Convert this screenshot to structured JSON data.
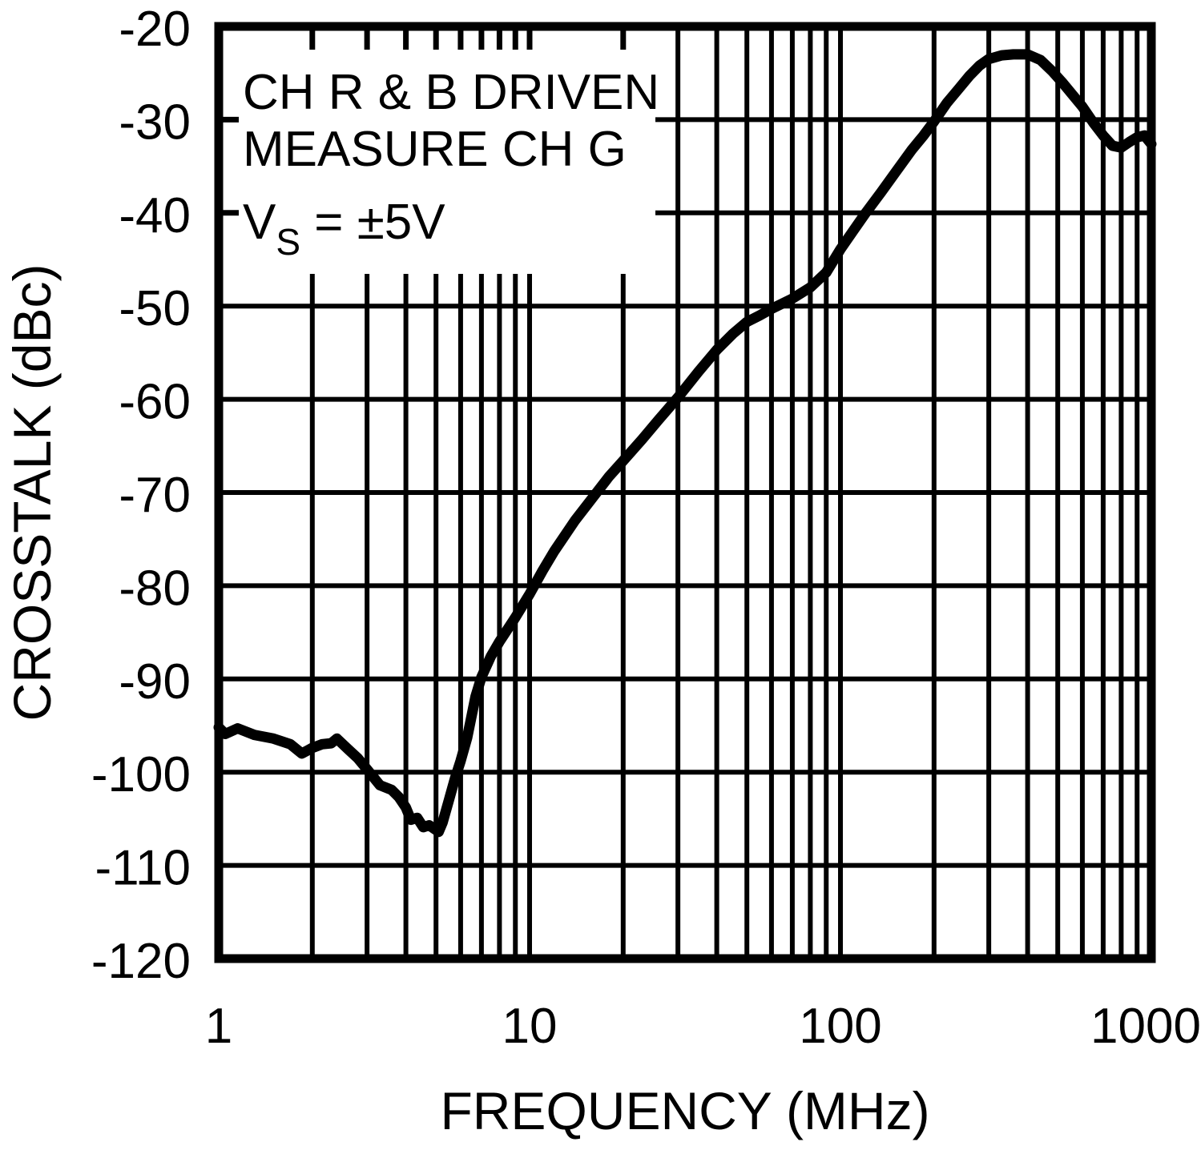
{
  "figure": {
    "xlabel": "FREQUENCY (MHz)",
    "ylabel": "CROSSTALK (dBc)",
    "annotation": {
      "line1": "CH R & B DRIVEN",
      "line2": "MEASURE CH G",
      "line3_pre": "V",
      "line3_sub": "S",
      "line3_post": " = ±5V"
    }
  },
  "chart_data": {
    "type": "line",
    "title": "",
    "xlabel": "FREQUENCY (MHz)",
    "ylabel": "CROSSTALK (dBc)",
    "x_scale": "log",
    "xlim": [
      1,
      1000
    ],
    "ylim": [
      -120,
      -20
    ],
    "x_ticks": [
      1,
      10,
      100,
      1000
    ],
    "x_tick_labels": [
      "1",
      "10",
      "100",
      "1000"
    ],
    "y_ticks": [
      -20,
      -30,
      -40,
      -50,
      -60,
      -70,
      -80,
      -90,
      -100,
      -110,
      -120
    ],
    "y_tick_labels": [
      "-20",
      "-30",
      "-40",
      "-50",
      "-60",
      "-70",
      "-80",
      "-90",
      "-100",
      "-110",
      "-120"
    ],
    "grid": {
      "horizontal_step_db": 10,
      "vertical": "log minor lines 2-9 every decade plus decades",
      "style": "full-frame black grid"
    },
    "legend": null,
    "annotations": [
      "CH R & B DRIVEN",
      "MEASURE CH G",
      "VS = ±5V"
    ],
    "line_color": "#000000",
    "series": [
      {
        "name": "Crosstalk: CH R & B driven, measure CH G, VS = ±5V",
        "color": "#000000",
        "points_mhz_dbc": [
          [
            1.0,
            -95.2
          ],
          [
            1.05,
            -95.9
          ],
          [
            1.15,
            -95.3
          ],
          [
            1.3,
            -96.0
          ],
          [
            1.5,
            -96.4
          ],
          [
            1.7,
            -97.0
          ],
          [
            1.85,
            -98.0
          ],
          [
            2.0,
            -97.4
          ],
          [
            2.15,
            -97.0
          ],
          [
            2.3,
            -96.9
          ],
          [
            2.4,
            -96.4
          ],
          [
            2.6,
            -97.5
          ],
          [
            2.8,
            -98.5
          ],
          [
            3.0,
            -99.7
          ],
          [
            3.3,
            -101.4
          ],
          [
            3.6,
            -101.9
          ],
          [
            3.8,
            -102.7
          ],
          [
            4.0,
            -103.8
          ],
          [
            4.15,
            -105.1
          ],
          [
            4.35,
            -104.9
          ],
          [
            4.55,
            -105.9
          ],
          [
            4.75,
            -105.7
          ],
          [
            5.0,
            -106.2
          ],
          [
            5.1,
            -106.4
          ],
          [
            5.25,
            -105.4
          ],
          [
            5.5,
            -103.0
          ],
          [
            5.75,
            -100.7
          ],
          [
            6.0,
            -98.8
          ],
          [
            6.3,
            -96.3
          ],
          [
            6.7,
            -91.9
          ],
          [
            7.0,
            -89.8
          ],
          [
            7.5,
            -87.6
          ],
          [
            8.0,
            -86.0
          ],
          [
            9.0,
            -83.4
          ],
          [
            10,
            -80.9
          ],
          [
            11,
            -78.4
          ],
          [
            12,
            -76.3
          ],
          [
            14,
            -73.0
          ],
          [
            16,
            -70.5
          ],
          [
            18,
            -68.3
          ],
          [
            20,
            -66.6
          ],
          [
            23,
            -64.3
          ],
          [
            26,
            -62.2
          ],
          [
            30,
            -59.8
          ],
          [
            35,
            -57.0
          ],
          [
            40,
            -54.7
          ],
          [
            45,
            -53.0
          ],
          [
            50,
            -51.7
          ],
          [
            55,
            -51.0
          ],
          [
            60,
            -50.3
          ],
          [
            70,
            -49.2
          ],
          [
            80,
            -48.0
          ],
          [
            90,
            -46.4
          ],
          [
            100,
            -43.9
          ],
          [
            110,
            -41.9
          ],
          [
            120,
            -40.1
          ],
          [
            135,
            -37.8
          ],
          [
            150,
            -35.7
          ],
          [
            170,
            -33.2
          ],
          [
            185,
            -31.7
          ],
          [
            200,
            -30.2
          ],
          [
            220,
            -28.2
          ],
          [
            240,
            -26.7
          ],
          [
            260,
            -25.3
          ],
          [
            280,
            -24.2
          ],
          [
            300,
            -23.5
          ],
          [
            330,
            -23.1
          ],
          [
            360,
            -23.0
          ],
          [
            400,
            -23.0
          ],
          [
            440,
            -23.6
          ],
          [
            480,
            -24.8
          ],
          [
            520,
            -26.1
          ],
          [
            560,
            -27.4
          ],
          [
            600,
            -28.6
          ],
          [
            650,
            -30.3
          ],
          [
            700,
            -31.7
          ],
          [
            750,
            -32.8
          ],
          [
            800,
            -33.0
          ],
          [
            850,
            -32.4
          ],
          [
            900,
            -31.9
          ],
          [
            950,
            -31.7
          ],
          [
            1000,
            -32.6
          ]
        ]
      }
    ]
  }
}
